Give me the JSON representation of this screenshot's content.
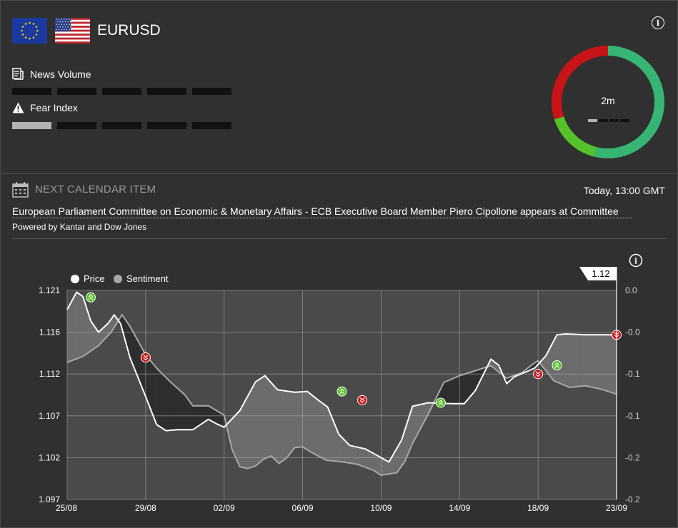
{
  "header": {
    "pair": "EURUSD",
    "flags": [
      "eu-flag-icon",
      "us-flag-icon"
    ]
  },
  "metrics": {
    "news_volume": {
      "label": "News Volume",
      "level": 0,
      "segments": 5
    },
    "fear_index": {
      "label": "Fear Index",
      "level": 1,
      "segments": 5
    }
  },
  "donut": {
    "label": "2m",
    "segments": [
      {
        "name": "positive",
        "fraction": 0.54,
        "color": "#37b574"
      },
      {
        "name": "neutral-positive",
        "fraction": 0.16,
        "color": "#56c22a"
      },
      {
        "name": "negative",
        "fraction": 0.3,
        "color": "#c81416"
      }
    ],
    "level_bars": {
      "level": 1,
      "segments": 4
    }
  },
  "calendar": {
    "heading": "NEXT CALENDAR ITEM",
    "time": "Today, 13:00 GMT",
    "event": "European Parliament Committee on Economic & Monetary Affairs - ECB Executive Board Member Piero Cipollone appears at Committee",
    "powered_by": "Powered by Kantar and Dow Jones"
  },
  "colors": {
    "bg": "#303030",
    "plot_bg": "#4a4a4a",
    "buy": "#56c22a",
    "sell": "#c81416"
  },
  "chart_data": {
    "type": "line",
    "legend": [
      "Price",
      "Sentiment"
    ],
    "current_value_label": "1.12",
    "x_ticks": [
      "25/08",
      "29/08",
      "02/09",
      "06/09",
      "10/09",
      "14/09",
      "18/09",
      "23/09"
    ],
    "y_left_ticks": [
      "1.097",
      "1.102",
      "1.107",
      "1.112",
      "1.116",
      "1.121"
    ],
    "y_left_range": [
      1.097,
      1.121
    ],
    "y_right_ticks": [
      "-0.2",
      "-0.2",
      "-0.1",
      "-0.1",
      "-0.0",
      "0.0"
    ],
    "y_right_range": [
      -0.25,
      0
    ],
    "price": [
      [
        0,
        1.1188
      ],
      [
        0.6,
        1.1208
      ],
      [
        1,
        1.1203
      ],
      [
        1.5,
        1.1175
      ],
      [
        2,
        1.1162
      ],
      [
        2.6,
        1.1172
      ],
      [
        3,
        1.1182
      ],
      [
        3.4,
        1.1172
      ],
      [
        4,
        1.1133
      ],
      [
        5,
        1.1088
      ],
      [
        5.7,
        1.1056
      ],
      [
        6.3,
        1.1049
      ],
      [
        7,
        1.105
      ],
      [
        8,
        1.105
      ],
      [
        9,
        1.1062
      ],
      [
        9.5,
        1.1057
      ],
      [
        10,
        1.1053
      ],
      [
        11,
        1.1072
      ],
      [
        12,
        1.1105
      ],
      [
        12.6,
        1.1112
      ],
      [
        13.4,
        1.1096
      ],
      [
        14.5,
        1.1093
      ],
      [
        15.3,
        1.1094
      ],
      [
        16,
        1.1084
      ],
      [
        16.6,
        1.1076
      ],
      [
        17.3,
        1.1045
      ],
      [
        18,
        1.1032
      ],
      [
        19,
        1.1028
      ],
      [
        20.5,
        1.1013
      ],
      [
        21.3,
        1.1038
      ],
      [
        22,
        1.1077
      ],
      [
        23,
        1.1081
      ],
      [
        24.5,
        1.108
      ],
      [
        25.3,
        1.108
      ],
      [
        26,
        1.1095
      ],
      [
        27,
        1.1131
      ],
      [
        27.5,
        1.1124
      ],
      [
        28,
        1.1103
      ],
      [
        28.5,
        1.1111
      ],
      [
        29.3,
        1.1117
      ],
      [
        29.8,
        1.1121
      ],
      [
        30.5,
        1.1135
      ],
      [
        31.2,
        1.1159
      ],
      [
        31.8,
        1.116
      ],
      [
        33,
        1.1159
      ],
      [
        35,
        1.1159
      ]
    ],
    "sentiment": [
      [
        0,
        -0.086
      ],
      [
        1,
        -0.079
      ],
      [
        2,
        -0.066
      ],
      [
        2.8,
        -0.05
      ],
      [
        3.5,
        -0.029
      ],
      [
        4,
        -0.043
      ],
      [
        5,
        -0.077
      ],
      [
        5.7,
        -0.093
      ],
      [
        6.5,
        -0.108
      ],
      [
        7.5,
        -0.125
      ],
      [
        8,
        -0.138
      ],
      [
        9,
        -0.138
      ],
      [
        10,
        -0.149
      ],
      [
        10.5,
        -0.19
      ],
      [
        11,
        -0.211
      ],
      [
        11.5,
        -0.213
      ],
      [
        12,
        -0.21
      ],
      [
        12.5,
        -0.202
      ],
      [
        13,
        -0.198
      ],
      [
        13.5,
        -0.207
      ],
      [
        14,
        -0.2
      ],
      [
        14.5,
        -0.188
      ],
      [
        15,
        -0.187
      ],
      [
        15.5,
        -0.193
      ],
      [
        16.5,
        -0.203
      ],
      [
        17.5,
        -0.205
      ],
      [
        18.5,
        -0.208
      ],
      [
        19.5,
        -0.215
      ],
      [
        20,
        -0.221
      ],
      [
        21,
        -0.218
      ],
      [
        21.5,
        -0.205
      ],
      [
        22,
        -0.183
      ],
      [
        23,
        -0.148
      ],
      [
        24,
        -0.11
      ],
      [
        25,
        -0.102
      ],
      [
        26,
        -0.096
      ],
      [
        27,
        -0.09
      ],
      [
        28,
        -0.105
      ],
      [
        29,
        -0.098
      ],
      [
        29.6,
        -0.089
      ],
      [
        30,
        -0.084
      ],
      [
        31,
        -0.108
      ],
      [
        32,
        -0.116
      ],
      [
        33,
        -0.114
      ],
      [
        34,
        -0.118
      ],
      [
        35,
        -0.124
      ]
    ],
    "signals": [
      {
        "x": 1.5,
        "y": 1.1202,
        "kind": "buy"
      },
      {
        "x": 5,
        "y": 1.1133,
        "kind": "sell"
      },
      {
        "x": 17.5,
        "y": 1.1094,
        "kind": "buy"
      },
      {
        "x": 18.8,
        "y": 1.1084,
        "kind": "sell"
      },
      {
        "x": 23.8,
        "y": 1.1081,
        "kind": "buy"
      },
      {
        "x": 30,
        "y": 1.1114,
        "kind": "sell"
      },
      {
        "x": 31.2,
        "y": 1.1124,
        "kind": "buy"
      },
      {
        "x": 35,
        "y": 1.1159,
        "kind": "sell"
      }
    ]
  }
}
